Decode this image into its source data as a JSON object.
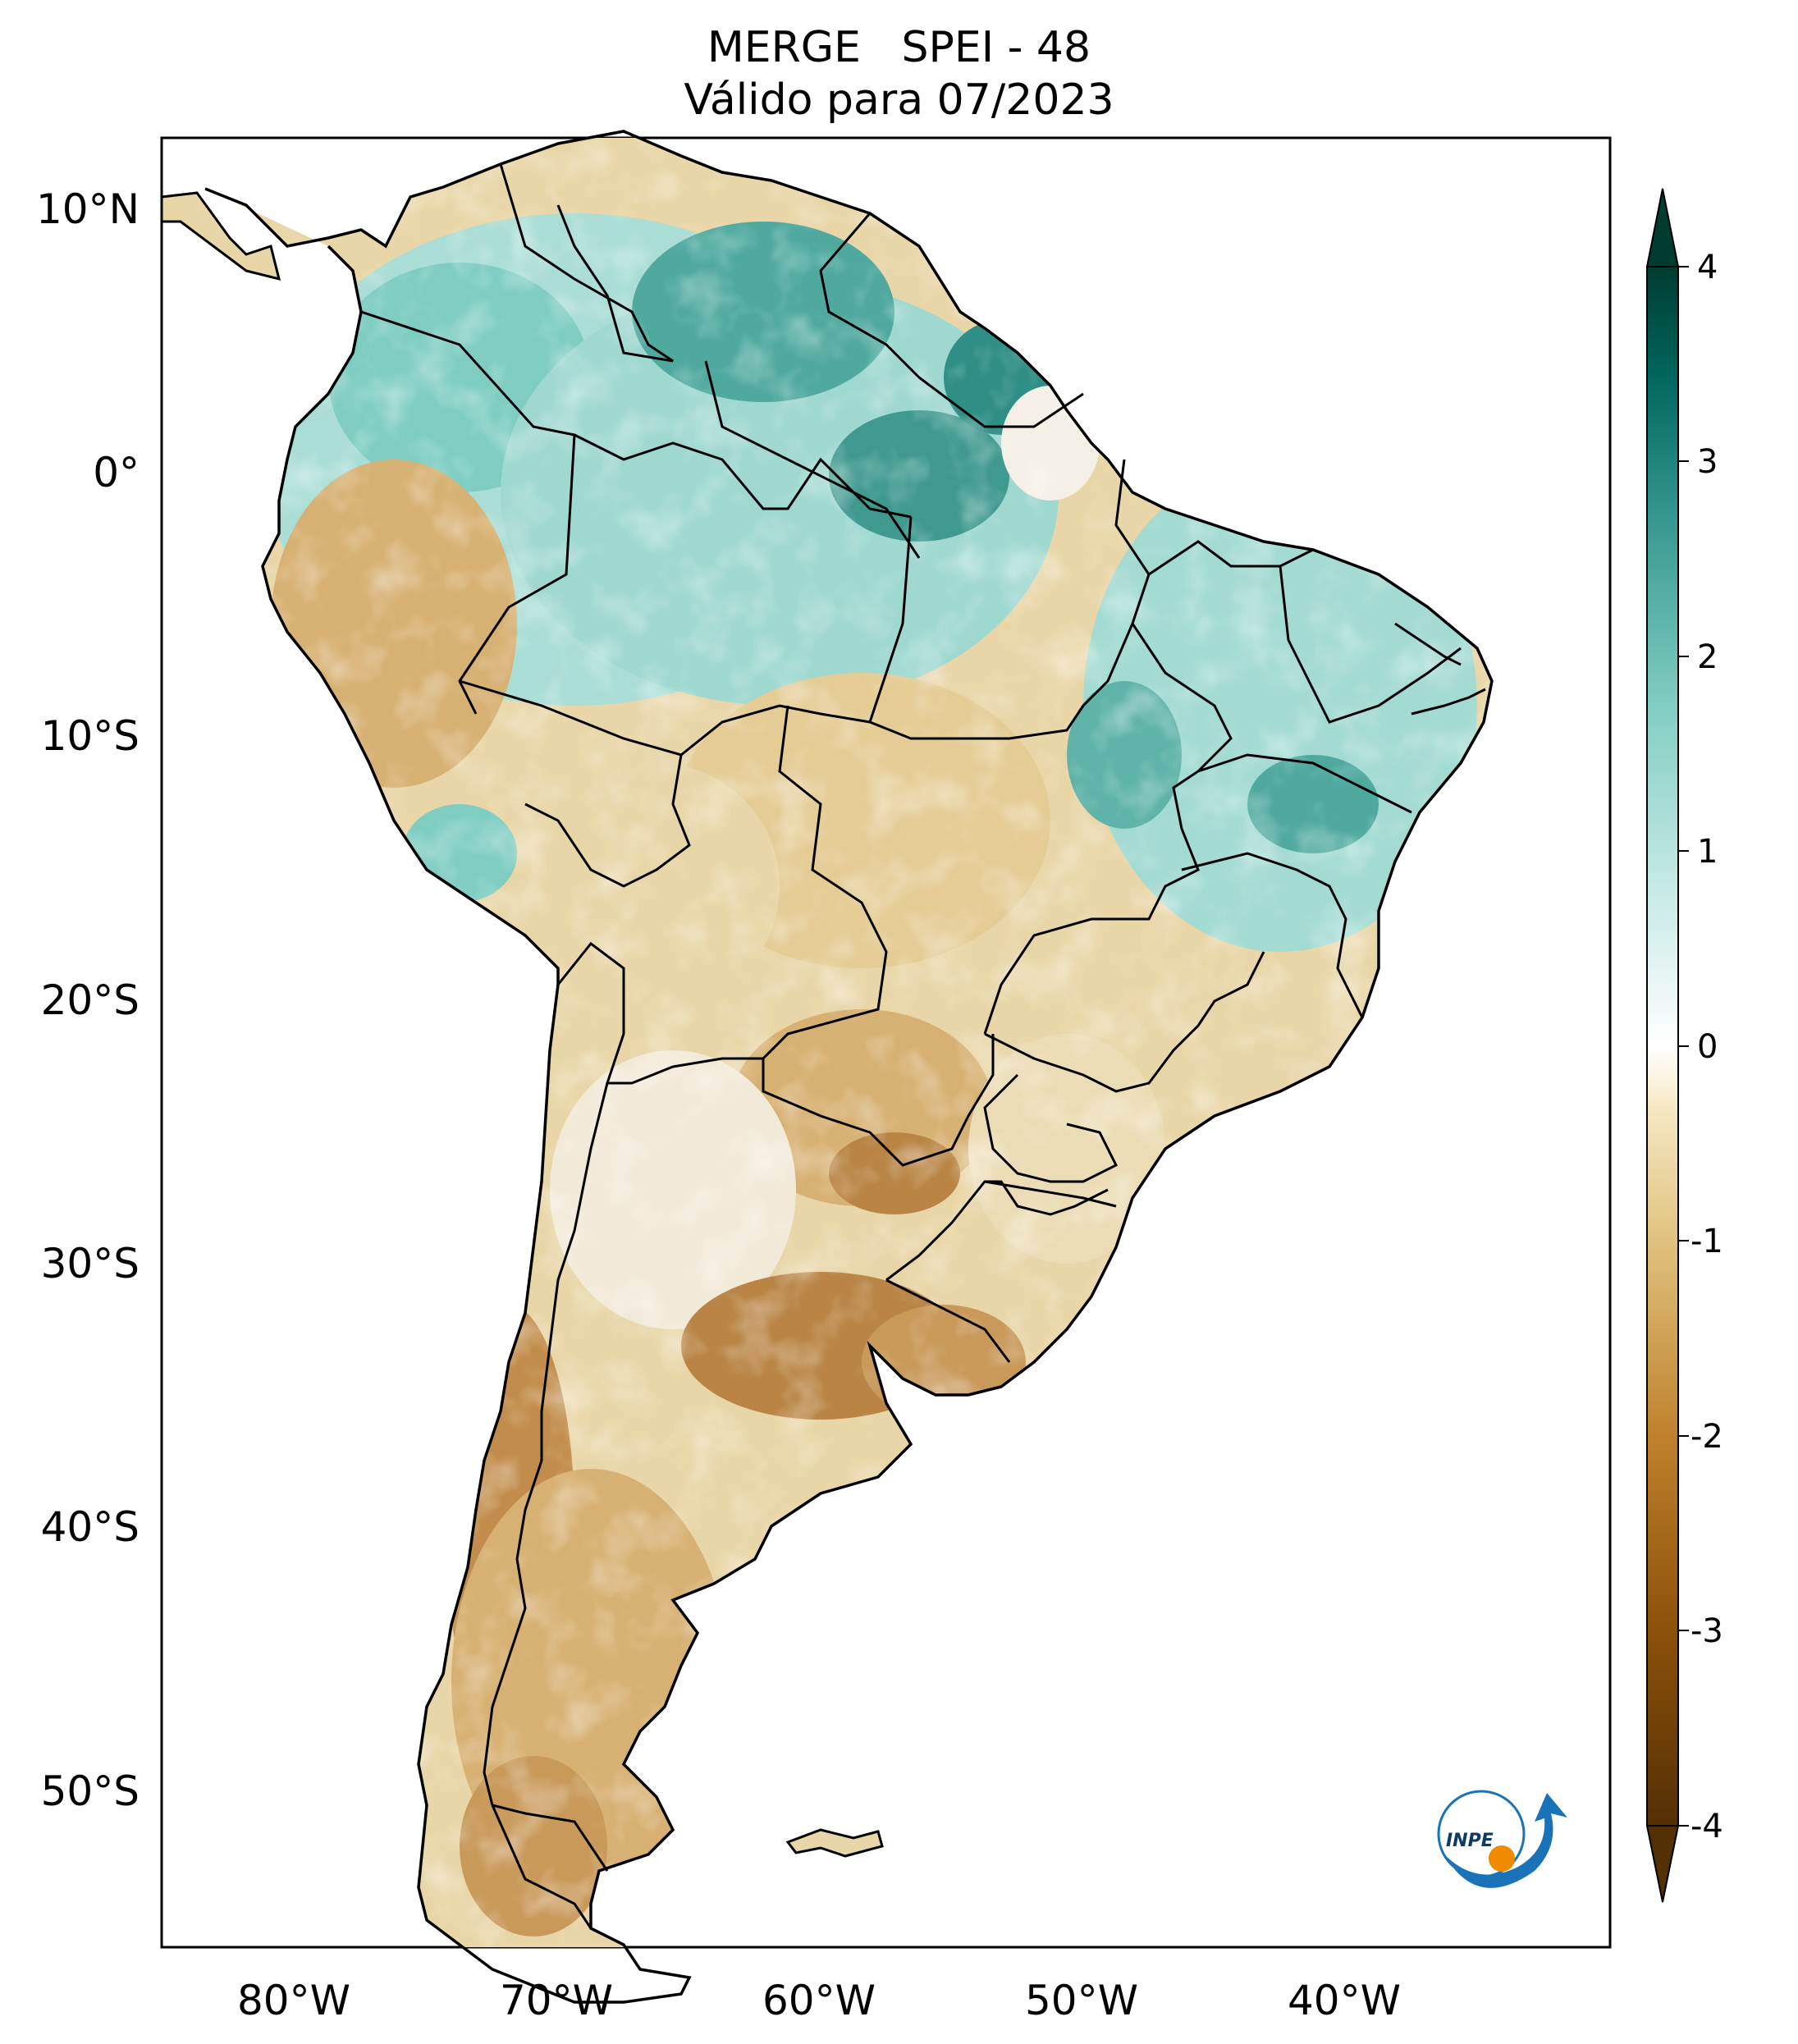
{
  "title": {
    "line1": "MERGE   SPEI - 48",
    "line2": "Válido para 07/2023"
  },
  "lat_ticks": [
    "10°N",
    "0°",
    "10°S",
    "20°S",
    "30°S",
    "40°S",
    "50°S"
  ],
  "lon_ticks": [
    "80°W",
    "70°W",
    "60°W",
    "50°W",
    "40°W"
  ],
  "colorbar": {
    "ticks": [
      "4",
      "3",
      "2",
      "1",
      "0",
      "-1",
      "-2",
      "-3",
      "-4"
    ],
    "colors": [
      "#543005",
      "#8c510a",
      "#bf812d",
      "#dfc27d",
      "#f6e8c3",
      "#ffffff",
      "#c7eae5",
      "#80cdc1",
      "#35978f",
      "#01665e",
      "#003c30"
    ]
  },
  "logo": {
    "text": "INPE"
  },
  "palette": {
    "wet_strong": "#2f8f86",
    "wet": "#7fcdc1",
    "wet_light": "#cdeee8",
    "neutral": "#f7f4ec",
    "dry_light": "#ecd9ae",
    "dry": "#d2ad6c",
    "dry_strong": "#a77434"
  }
}
